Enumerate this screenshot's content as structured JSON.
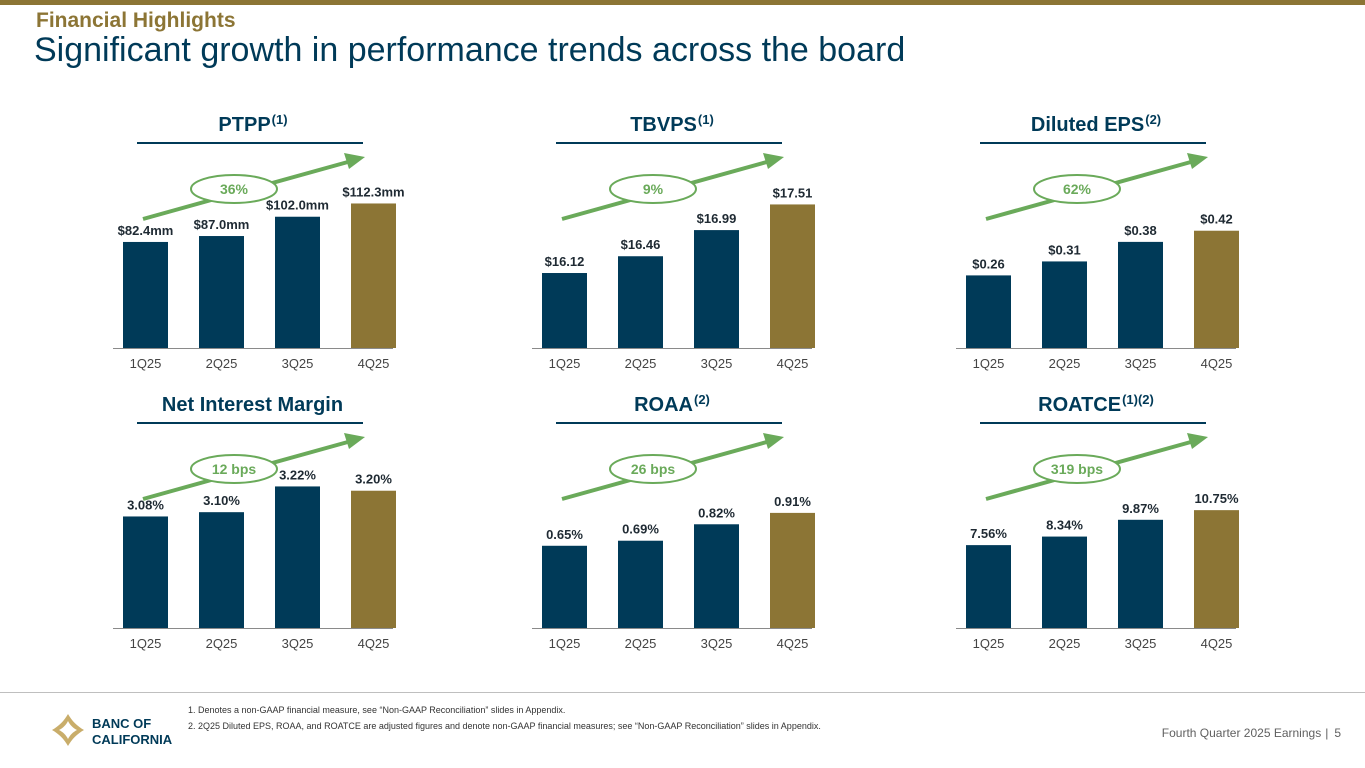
{
  "header": {
    "eyebrow": "Financial Highlights",
    "title": "Significant growth in performance trends across the board"
  },
  "colors": {
    "navy": "#003a58",
    "gold": "#8c7535",
    "green": "#6aaa5a"
  },
  "chart_data": [
    {
      "type": "bar",
      "title": "PTPP",
      "superscript": "(1)",
      "growth_label": "36%",
      "categories": [
        "1Q25",
        "2Q25",
        "3Q25",
        "4Q25"
      ],
      "values": [
        82.4,
        87.0,
        102.0,
        112.3
      ],
      "labels": [
        "$82.4mm",
        "$87.0mm",
        "$102.0mm",
        "$112.3mm"
      ],
      "ylim": [
        0,
        115
      ]
    },
    {
      "type": "bar",
      "title": "TBVPS",
      "superscript": "(1)",
      "growth_label": "9%",
      "categories": [
        "1Q25",
        "2Q25",
        "3Q25",
        "4Q25"
      ],
      "values": [
        16.12,
        16.46,
        16.99,
        17.51
      ],
      "labels": [
        "$16.12",
        "$16.46",
        "$16.99",
        "$17.51"
      ],
      "ylim": [
        14.6,
        17.6
      ]
    },
    {
      "type": "bar",
      "title": "Diluted EPS",
      "superscript": "(2)",
      "growth_label": "62%",
      "categories": [
        "1Q25",
        "2Q25",
        "3Q25",
        "4Q25"
      ],
      "values": [
        0.26,
        0.31,
        0.38,
        0.42
      ],
      "labels": [
        "$0.26",
        "$0.31",
        "$0.38",
        "$0.42"
      ],
      "ylim": [
        0,
        0.53
      ]
    },
    {
      "type": "bar",
      "title": "Net Interest Margin",
      "superscript": "",
      "growth_label": "12 bps",
      "categories": [
        "1Q25",
        "2Q25",
        "3Q25",
        "4Q25"
      ],
      "values": [
        3.08,
        3.1,
        3.22,
        3.2
      ],
      "labels": [
        "3.08%",
        "3.10%",
        "3.22%",
        "3.20%"
      ],
      "ylim": [
        2.56,
        3.25
      ]
    },
    {
      "type": "bar",
      "title": "ROAA",
      "superscript": "(2)",
      "growth_label": "26 bps",
      "categories": [
        "1Q25",
        "2Q25",
        "3Q25",
        "4Q25"
      ],
      "values": [
        0.65,
        0.69,
        0.82,
        0.91
      ],
      "labels": [
        "0.65%",
        "0.69%",
        "0.82%",
        "0.91%"
      ],
      "ylim": [
        0,
        1.17
      ]
    },
    {
      "type": "bar",
      "title": "ROATCE",
      "superscript": "(1)(2)",
      "growth_label": "319 bps",
      "categories": [
        "1Q25",
        "2Q25",
        "3Q25",
        "4Q25"
      ],
      "values": [
        7.56,
        8.34,
        9.87,
        10.75
      ],
      "labels": [
        "7.56%",
        "8.34%",
        "9.87%",
        "10.75%"
      ],
      "ylim": [
        0,
        13.5
      ]
    }
  ],
  "footnotes": [
    "1.  Denotes a non-GAAP financial measure, see “Non-GAAP Reconciliation” slides in Appendix.",
    "2.  2Q25 Diluted EPS, ROAA, and ROATCE are adjusted figures and denote non-GAAP financial measures; see “Non-GAAP Reconciliation” slides in Appendix."
  ],
  "footer": {
    "text": "Fourth Quarter 2025 Earnings",
    "separator": "|",
    "page": "5"
  },
  "logo": {
    "line1": "BANC OF",
    "line2": "CALIFORNIA"
  }
}
